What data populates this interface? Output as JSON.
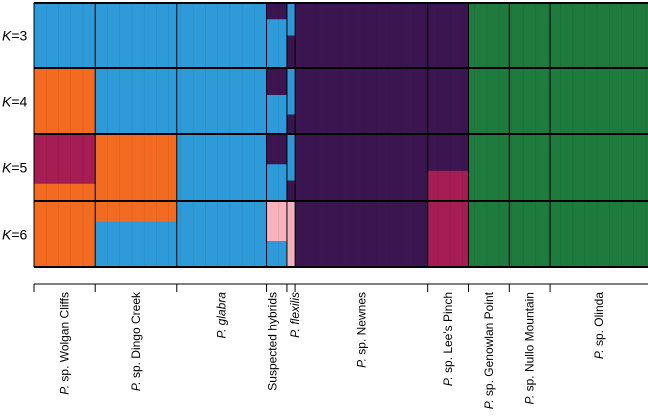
{
  "chart_data": {
    "type": "bar",
    "k_rows": [
      {
        "label": "K = 3",
        "k_letter": "K",
        "k_value": "3"
      },
      {
        "label": "K = 4",
        "k_letter": "K",
        "k_value": "4"
      },
      {
        "label": "K = 5",
        "k_letter": "K",
        "k_value": "5"
      },
      {
        "label": "K = 6",
        "k_letter": "K",
        "k_value": "6"
      }
    ],
    "colors": {
      "blue": "#2f9ad8",
      "orange": "#f26b21",
      "purple": "#3b1550",
      "green": "#1f7a3d",
      "crimson": "#a51d52",
      "pink": "#f7b3bd"
    },
    "populations": [
      {
        "name": "P. sp. Wolgan Cliffs",
        "genus": "P.",
        "rest": " sp. Wolgan Cliffs",
        "italic_all": false,
        "samples": 60,
        "clusters": [
          [
            "blue"
          ],
          [
            "orange"
          ],
          [
            "crimson",
            "orange"
          ],
          [
            "orange"
          ]
        ],
        "proportions": [
          [
            1.0
          ],
          [
            1.0
          ],
          [
            0.75,
            0.25
          ],
          [
            1.0
          ]
        ]
      },
      {
        "name": "P. sp. Dingo Creek",
        "genus": "P.",
        "rest": " sp. Dingo Creek",
        "italic_all": false,
        "samples": 80,
        "clusters": [
          [
            "blue"
          ],
          [
            "blue"
          ],
          [
            "orange"
          ],
          [
            "orange",
            "blue"
          ]
        ],
        "proportions": [
          [
            1.0
          ],
          [
            1.0
          ],
          [
            1.0
          ],
          [
            0.3,
            0.7
          ]
        ]
      },
      {
        "name": "P. glabra",
        "genus": "P.",
        "rest": " glabra",
        "italic_all": true,
        "samples": 88,
        "clusters": [
          [
            "blue"
          ],
          [
            "blue"
          ],
          [
            "blue"
          ],
          [
            "blue"
          ]
        ],
        "proportions": [
          [
            1.0
          ],
          [
            1.0
          ],
          [
            1.0
          ],
          [
            1.0
          ]
        ]
      },
      {
        "name": "Suspected hybrids",
        "genus": "",
        "rest": "Suspected hybrids",
        "italic_all": false,
        "samples": 20,
        "clusters": [
          [
            "purple",
            "blue"
          ],
          [
            "purple",
            "blue"
          ],
          [
            "purple",
            "blue"
          ],
          [
            "pink",
            "blue"
          ]
        ],
        "proportions": [
          [
            0.25,
            0.75
          ],
          [
            0.4,
            0.6
          ],
          [
            0.45,
            0.55
          ],
          [
            0.6,
            0.4
          ]
        ]
      },
      {
        "name": "P. flexilis",
        "genus": "P.",
        "rest": " flexilis",
        "italic_all": true,
        "samples": 8,
        "clusters": [
          [
            "blue",
            "purple"
          ],
          [
            "blue",
            "purple"
          ],
          [
            "blue",
            "purple"
          ],
          [
            "pink"
          ]
        ],
        "proportions": [
          [
            0.5,
            0.5
          ],
          [
            0.7,
            0.3
          ],
          [
            0.7,
            0.3
          ],
          [
            1.0
          ]
        ]
      },
      {
        "name": "P. sp. Newnes",
        "genus": "P.",
        "rest": " sp. Newnes",
        "italic_all": false,
        "samples": 130,
        "clusters": [
          [
            "purple"
          ],
          [
            "purple"
          ],
          [
            "purple"
          ],
          [
            "purple"
          ]
        ],
        "proportions": [
          [
            1.0
          ],
          [
            1.0
          ],
          [
            1.0
          ],
          [
            1.0
          ]
        ]
      },
      {
        "name": "P. sp. Lee's Pinch",
        "genus": "P.",
        "rest": " sp. Lee's Pinch",
        "italic_all": false,
        "samples": 40,
        "clusters": [
          [
            "purple"
          ],
          [
            "purple"
          ],
          [
            "purple",
            "crimson"
          ],
          [
            "crimson"
          ]
        ],
        "proportions": [
          [
            1.0
          ],
          [
            1.0
          ],
          [
            0.55,
            0.45
          ],
          [
            1.0
          ]
        ]
      },
      {
        "name": "P. sp. Genowlan Point",
        "genus": "P.",
        "rest": " sp. Genowlan Point",
        "italic_all": false,
        "samples": 40,
        "clusters": [
          [
            "green"
          ],
          [
            "green"
          ],
          [
            "green"
          ],
          [
            "green"
          ]
        ],
        "proportions": [
          [
            1.0
          ],
          [
            1.0
          ],
          [
            1.0
          ],
          [
            1.0
          ]
        ]
      },
      {
        "name": "P. sp. Nullo Mountain",
        "genus": "P.",
        "rest": " sp. Nullo Mountain",
        "italic_all": false,
        "samples": 40,
        "clusters": [
          [
            "green"
          ],
          [
            "green"
          ],
          [
            "green"
          ],
          [
            "green"
          ]
        ],
        "proportions": [
          [
            1.0
          ],
          [
            1.0
          ],
          [
            1.0
          ],
          [
            1.0
          ]
        ]
      },
      {
        "name": "P. sp. Olinda",
        "genus": "P.",
        "rest": " sp. Olinda",
        "italic_all": false,
        "samples": 96,
        "clusters": [
          [
            "green"
          ],
          [
            "green"
          ],
          [
            "green"
          ],
          [
            "green"
          ]
        ],
        "proportions": [
          [
            1.0
          ],
          [
            1.0
          ],
          [
            1.0
          ],
          [
            1.0
          ]
        ]
      }
    ],
    "title": "",
    "xlabel": "",
    "ylabel": ""
  }
}
